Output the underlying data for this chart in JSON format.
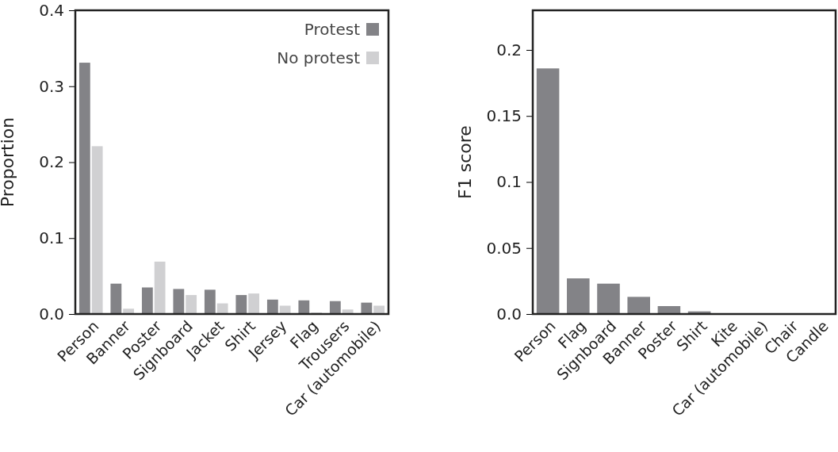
{
  "chart_data": [
    {
      "type": "bar",
      "ylabel": "Proportion",
      "categories": [
        "Person",
        "Banner",
        "Poster",
        "Signboard",
        "Jacket",
        "Shirt",
        "Jersey",
        "Flag",
        "Trousers",
        "Car (automobile)"
      ],
      "series": [
        {
          "name": "Protest",
          "color": "#838387",
          "values": [
            0.331,
            0.04,
            0.035,
            0.033,
            0.032,
            0.025,
            0.019,
            0.018,
            0.017,
            0.015
          ]
        },
        {
          "name": "No protest",
          "color": "#d0d0d2",
          "values": [
            0.221,
            0.007,
            0.069,
            0.025,
            0.014,
            0.027,
            0.011,
            0.002,
            0.006,
            0.011
          ]
        }
      ],
      "ylim": [
        0,
        0.4
      ],
      "yticks": [
        {
          "value": 0,
          "label": "0.0"
        },
        0.1,
        0.2,
        0.3,
        0.4
      ],
      "legend": "top right",
      "grid": false
    },
    {
      "type": "bar",
      "ylabel": "F1 score",
      "categories": [
        "Person",
        "Flag",
        "Signboard",
        "Banner",
        "Poster",
        "Shirt",
        "Kite",
        "Car (automobile)",
        "Chair",
        "Candle"
      ],
      "series": [
        {
          "color": "#838387",
          "values": [
            0.186,
            0.027,
            0.023,
            0.013,
            0.006,
            0.002,
            0,
            0,
            0,
            0
          ]
        }
      ],
      "ylim": [
        0,
        0.23
      ],
      "yticks": [
        {
          "value": 0,
          "label": "0.0"
        },
        0.05,
        0.1,
        0.15,
        0.2
      ],
      "grid": false
    }
  ]
}
